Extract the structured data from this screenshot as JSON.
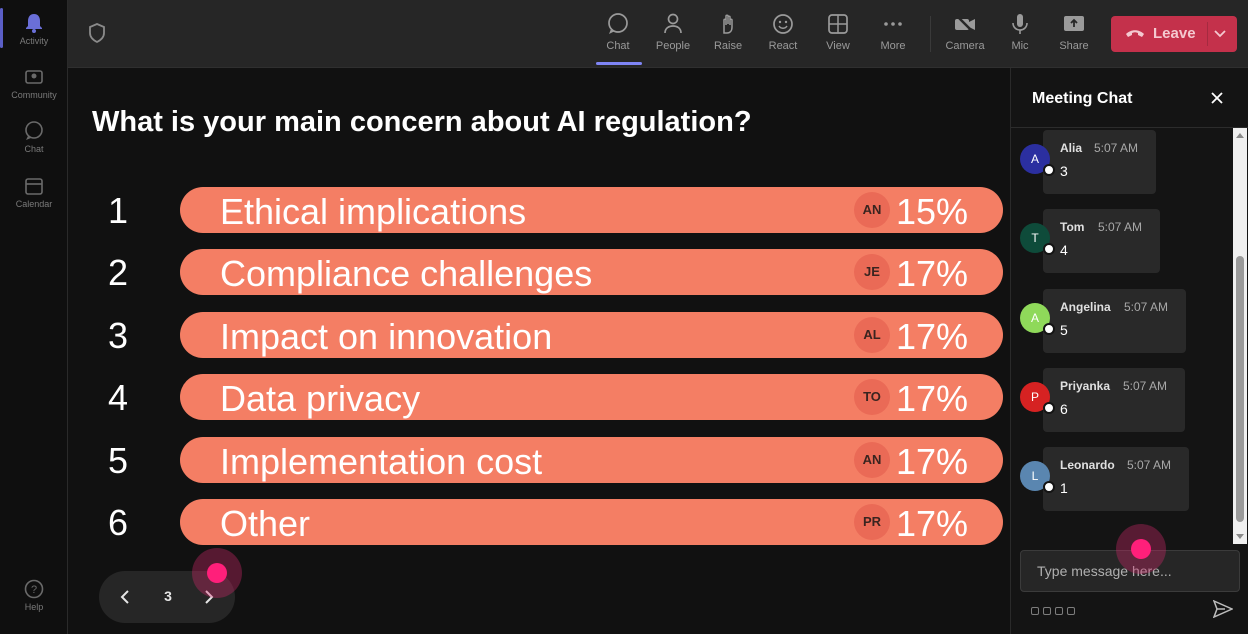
{
  "rail": {
    "items": [
      {
        "label": "Activity",
        "icon": "bell-icon"
      },
      {
        "label": "Community",
        "icon": "community-icon"
      },
      {
        "label": "Chat",
        "icon": "chat-icon"
      },
      {
        "label": "Calendar",
        "icon": "calendar-icon"
      },
      {
        "label": "Help",
        "icon": "help-icon"
      }
    ],
    "accent": "#5b5fc7"
  },
  "toolbar": {
    "buttons": [
      {
        "label": "Chat",
        "icon": "chat-bubble-icon",
        "active": true
      },
      {
        "label": "People",
        "icon": "people-icon"
      },
      {
        "label": "Raise",
        "icon": "raise-hand-icon"
      },
      {
        "label": "React",
        "icon": "smiley-icon"
      },
      {
        "label": "View",
        "icon": "grid-view-icon"
      },
      {
        "label": "More",
        "icon": "more-icon"
      },
      {
        "label": "Camera",
        "icon": "camera-off-icon"
      },
      {
        "label": "Mic",
        "icon": "microphone-icon"
      },
      {
        "label": "Share",
        "icon": "share-screen-icon"
      }
    ],
    "leave_label": "Leave",
    "leave_color": "#c4314b"
  },
  "poll": {
    "question": "What is your main concern about AI regulation?",
    "bar_color": "#f47e64",
    "options": [
      {
        "num": "1",
        "label": "Ethical implications",
        "initials": "AN",
        "pct": "15%"
      },
      {
        "num": "2",
        "label": "Compliance challenges",
        "initials": "JE",
        "pct": "17%"
      },
      {
        "num": "3",
        "label": "Impact on innovation",
        "initials": "AL",
        "pct": "17%"
      },
      {
        "num": "4",
        "label": "Data privacy",
        "initials": "TO",
        "pct": "17%"
      },
      {
        "num": "5",
        "label": "Implementation cost",
        "initials": "AN",
        "pct": "17%"
      },
      {
        "num": "6",
        "label": "Other",
        "initials": "PR",
        "pct": "17%"
      }
    ],
    "page": "3"
  },
  "chat": {
    "title": "Meeting Chat",
    "messages": [
      {
        "initial": "A",
        "name": "Alia",
        "time": "5:07 AM",
        "text": "3",
        "color": "#2b2fa0"
      },
      {
        "initial": "T",
        "name": "Tom",
        "time": "5:07 AM",
        "text": "4",
        "color": "#0e4b3a"
      },
      {
        "initial": "A",
        "name": "Angelina",
        "time": "5:07 AM",
        "text": "5",
        "color": "#8fd95a"
      },
      {
        "initial": "P",
        "name": "Priyanka",
        "time": "5:07 AM",
        "text": "6",
        "color": "#d62222"
      },
      {
        "initial": "L",
        "name": "Leonardo",
        "time": "5:07 AM",
        "text": "1",
        "color": "#5a86b0"
      }
    ],
    "input_placeholder": "Type message here..."
  }
}
